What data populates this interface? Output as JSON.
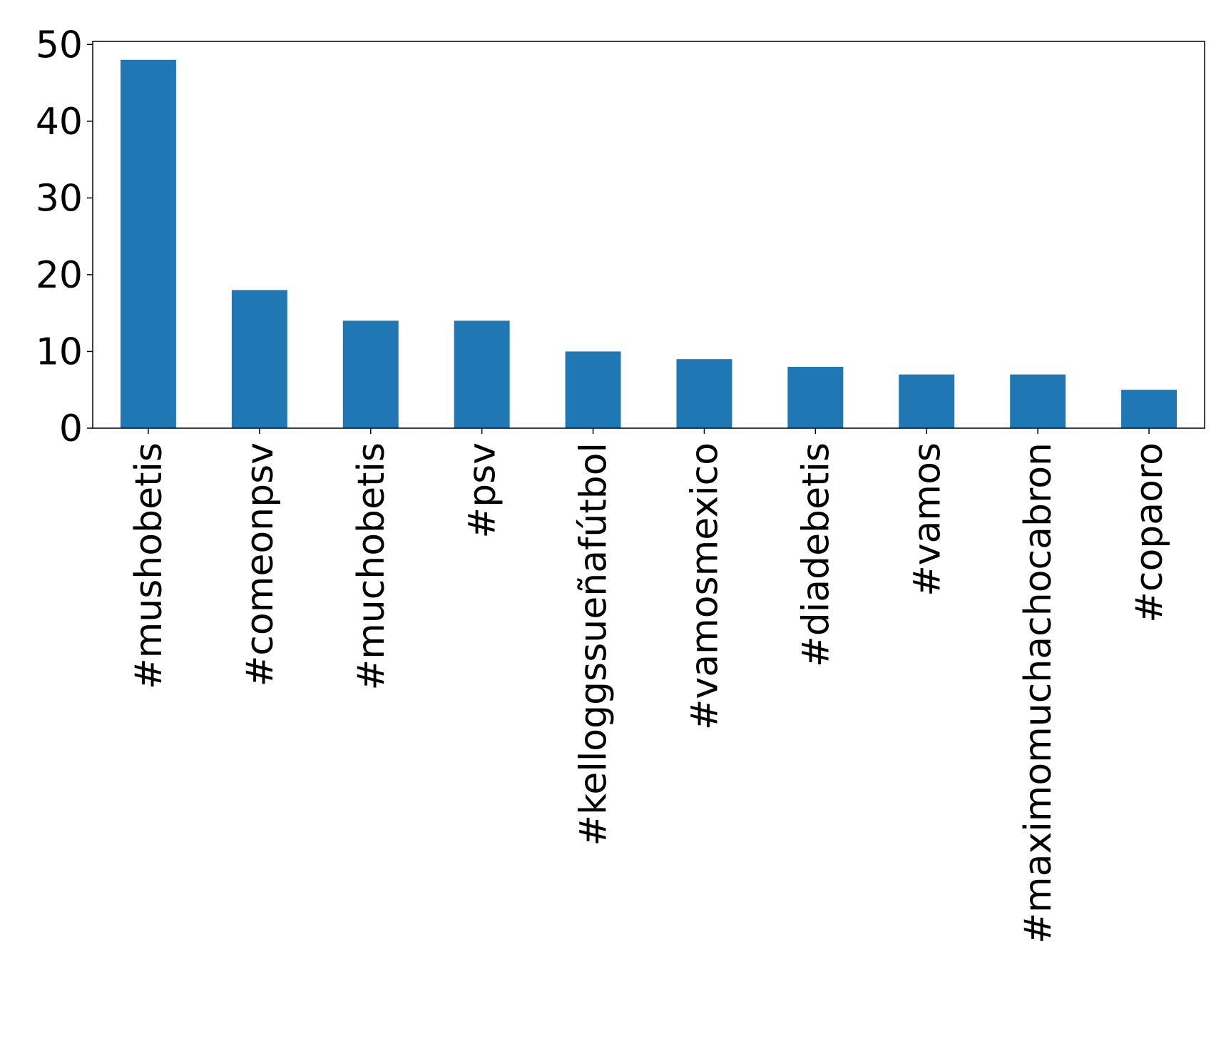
{
  "chart_data": {
    "type": "bar",
    "title": "",
    "xlabel": "",
    "ylabel": "",
    "categories": [
      "#mushobetis",
      "#comeonpsv",
      "#muchobetis",
      "#psv",
      "#kelloggssueñafútbol",
      "#vamosmexico",
      "#diadebetis",
      "#vamos",
      "#maximomuchachocabron",
      "#copaoro"
    ],
    "values": [
      48,
      18,
      14,
      14,
      10,
      9,
      8,
      7,
      7,
      5
    ],
    "ylim": [
      0,
      50.4
    ],
    "yticks": [
      0,
      10,
      20,
      30,
      40,
      50
    ],
    "grid": false,
    "legend": "none",
    "bar_color": "#1f77b4",
    "axis_color": "#000000"
  }
}
